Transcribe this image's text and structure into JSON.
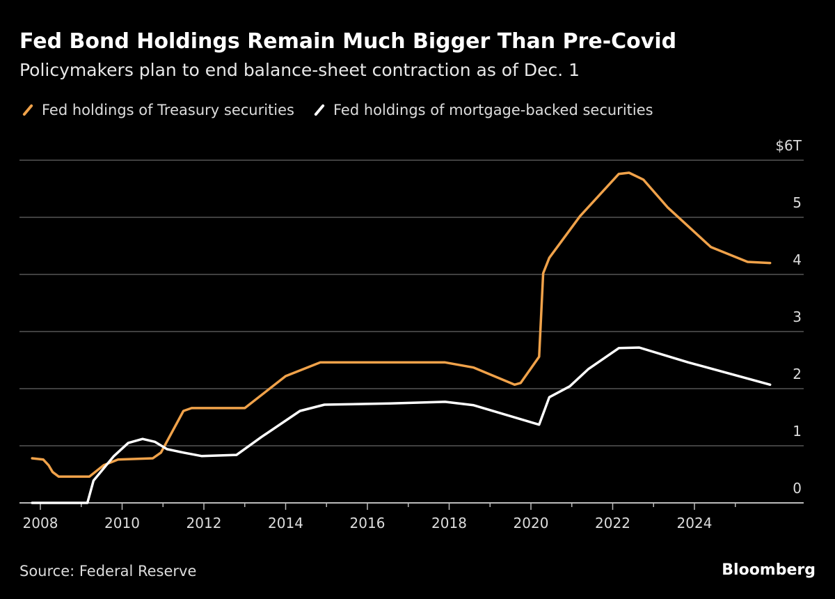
{
  "title": "Fed Bond Holdings Remain Much Bigger Than Pre-Covid",
  "subtitle": "Policymakers plan to end balance-sheet contraction as of Dec. 1",
  "source": "Source: Federal Reserve",
  "brand": "Bloomberg",
  "chart_data": {
    "type": "line",
    "xlim": [
      2007.8,
      2025.85
    ],
    "ylim": [
      0,
      6
    ],
    "x_ticks": [
      "2008",
      "2010",
      "2012",
      "2014",
      "2016",
      "2018",
      "2020",
      "2022",
      "2024"
    ],
    "y_ticks": [
      "0",
      "1",
      "2",
      "3",
      "4",
      "5",
      "$6T"
    ],
    "grid": true,
    "legend_position": "top-left",
    "series": [
      {
        "name": "Fed holdings of Treasury securities",
        "color": "#f0a24a",
        "x": [
          2007.8,
          2008.07,
          2008.2,
          2008.3,
          2008.45,
          2009.2,
          2009.55,
          2009.9,
          2010.75,
          2010.95,
          2011.5,
          2011.7,
          2013.0,
          2014.0,
          2014.85,
          2017.9,
          2018.6,
          2019.6,
          2019.75,
          2020.2,
          2020.3,
          2020.45,
          2021.2,
          2022.15,
          2022.4,
          2022.75,
          2023.35,
          2024.4,
          2025.3,
          2025.85
        ],
        "y": [
          0.78,
          0.76,
          0.66,
          0.54,
          0.46,
          0.46,
          0.66,
          0.76,
          0.78,
          0.88,
          1.61,
          1.66,
          1.66,
          2.22,
          2.46,
          2.46,
          2.37,
          2.07,
          2.1,
          2.56,
          4.02,
          4.29,
          5.02,
          5.76,
          5.78,
          5.66,
          5.17,
          4.48,
          4.22,
          4.2
        ]
      },
      {
        "name": "Fed holdings of mortgage-backed securities",
        "color": "#ffffff",
        "x": [
          2007.8,
          2009.15,
          2009.3,
          2009.8,
          2010.15,
          2010.5,
          2010.8,
          2011.1,
          2011.5,
          2011.95,
          2012.8,
          2013.4,
          2014.35,
          2014.95,
          2016.55,
          2017.9,
          2018.6,
          2020.2,
          2020.45,
          2020.95,
          2021.4,
          2022.15,
          2022.65,
          2023.85,
          2025.85
        ],
        "y": [
          0,
          0,
          0.39,
          0.82,
          1.05,
          1.12,
          1.07,
          0.94,
          0.88,
          0.82,
          0.84,
          1.15,
          1.61,
          1.72,
          1.74,
          1.77,
          1.71,
          1.37,
          1.85,
          2.04,
          2.34,
          2.71,
          2.72,
          2.46,
          2.07
        ]
      }
    ]
  }
}
